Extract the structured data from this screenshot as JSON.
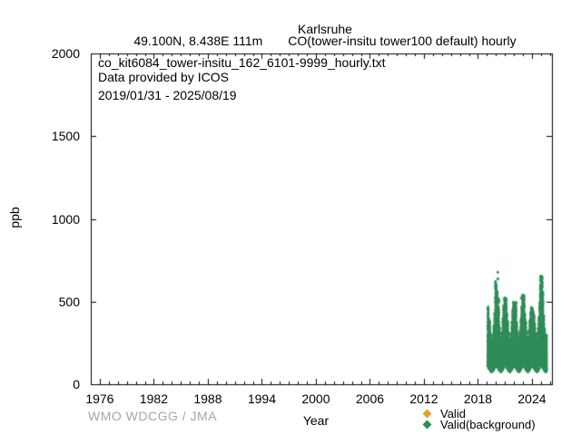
{
  "title": {
    "station": "Karlsruhe",
    "location_line": "49.100N, 8.438E 111m",
    "series_line": "CO(tower-insitu tower100 default) hourly"
  },
  "annotation": {
    "file_name": "co_kit6084_tower-insitu_162_6101-9999_hourly.txt",
    "provider": "Data provided by ICOS",
    "date_range": "2019/01/31 - 2025/08/19"
  },
  "footer_credit": "WMO WDCGG / JMA",
  "legend": {
    "valid": {
      "label": "Valid",
      "color": "#e8a02f"
    },
    "valid_background": {
      "label": "Valid(background)",
      "color": "#2e8b57"
    }
  },
  "chart_data": {
    "type": "scatter",
    "title": "Karlsruhe CO (tower-insitu tower100 default) hourly",
    "xlabel": "Year",
    "ylabel": "ppb",
    "xlim": [
      1975.0,
      2026.22
    ],
    "ylim": [
      0,
      2000
    ],
    "xticks": [
      1976,
      1982,
      1988,
      1994,
      2000,
      2006,
      2012,
      2018,
      2024
    ],
    "yticks": [
      0,
      500,
      1000,
      1500,
      2000
    ],
    "x_minor_step_years": 1,
    "grid": false,
    "legend_position": "bottom-right-outside",
    "marker": "diamond",
    "series": [
      {
        "name": "Valid",
        "color": "#e8a02f",
        "visible_point_count": 0
      },
      {
        "name": "Valid(background)",
        "color": "#2e8b57",
        "time_coverage": "2019/01/31 - 2025/08/19",
        "t_start_decimal_year": 2019.082,
        "t_end_decimal_year": 2025.633,
        "monthly_envelope_ppb": [
          [
            2019,
            2,
            108,
            470
          ],
          [
            2019,
            3,
            95,
            400
          ],
          [
            2019,
            4,
            90,
            385
          ],
          [
            2019,
            5,
            84,
            310
          ],
          [
            2019,
            6,
            76,
            258
          ],
          [
            2019,
            7,
            74,
            250
          ],
          [
            2019,
            8,
            78,
            264
          ],
          [
            2019,
            9,
            84,
            305
          ],
          [
            2019,
            10,
            94,
            358
          ],
          [
            2019,
            11,
            104,
            430
          ],
          [
            2019,
            12,
            114,
            628
          ],
          [
            2020,
            1,
            118,
            600
          ],
          [
            2020,
            2,
            112,
            560
          ],
          [
            2020,
            3,
            98,
            470
          ],
          [
            2020,
            4,
            94,
            520
          ],
          [
            2020,
            5,
            84,
            350
          ],
          [
            2020,
            6,
            78,
            278
          ],
          [
            2020,
            7,
            74,
            260
          ],
          [
            2020,
            8,
            78,
            270
          ],
          [
            2020,
            9,
            84,
            318
          ],
          [
            2020,
            10,
            94,
            398
          ],
          [
            2020,
            11,
            108,
            478
          ],
          [
            2020,
            12,
            114,
            524
          ],
          [
            2021,
            1,
            118,
            505
          ],
          [
            2021,
            2,
            112,
            520
          ],
          [
            2021,
            3,
            98,
            428
          ],
          [
            2021,
            4,
            94,
            380
          ],
          [
            2021,
            5,
            84,
            318
          ],
          [
            2021,
            6,
            78,
            268
          ],
          [
            2021,
            7,
            74,
            258
          ],
          [
            2021,
            8,
            78,
            270
          ],
          [
            2021,
            9,
            84,
            310
          ],
          [
            2021,
            10,
            94,
            378
          ],
          [
            2021,
            11,
            106,
            450
          ],
          [
            2021,
            12,
            114,
            498
          ],
          [
            2022,
            1,
            116,
            468
          ],
          [
            2022,
            2,
            110,
            452
          ],
          [
            2022,
            3,
            98,
            498
          ],
          [
            2022,
            4,
            94,
            378
          ],
          [
            2022,
            5,
            84,
            320
          ],
          [
            2022,
            6,
            78,
            270
          ],
          [
            2022,
            7,
            74,
            260
          ],
          [
            2022,
            8,
            78,
            280
          ],
          [
            2022,
            9,
            85,
            330
          ],
          [
            2022,
            10,
            95,
            398
          ],
          [
            2022,
            11,
            107,
            470
          ],
          [
            2022,
            12,
            115,
            542
          ],
          [
            2023,
            1,
            118,
            520
          ],
          [
            2023,
            2,
            113,
            538
          ],
          [
            2023,
            3,
            99,
            430
          ],
          [
            2023,
            4,
            94,
            380
          ],
          [
            2023,
            5,
            84,
            320
          ],
          [
            2023,
            6,
            78,
            280
          ],
          [
            2023,
            7,
            75,
            260
          ],
          [
            2023,
            8,
            78,
            280
          ],
          [
            2023,
            9,
            85,
            330
          ],
          [
            2023,
            10,
            94,
            390
          ],
          [
            2023,
            11,
            105,
            440
          ],
          [
            2023,
            12,
            113,
            470
          ],
          [
            2024,
            1,
            117,
            460
          ],
          [
            2024,
            2,
            111,
            440
          ],
          [
            2024,
            3,
            99,
            420
          ],
          [
            2024,
            4,
            93,
            370
          ],
          [
            2024,
            5,
            83,
            310
          ],
          [
            2024,
            6,
            77,
            270
          ],
          [
            2024,
            7,
            75,
            260
          ],
          [
            2024,
            8,
            77,
            280
          ],
          [
            2024,
            9,
            85,
            340
          ],
          [
            2024,
            10,
            95,
            410
          ],
          [
            2024,
            11,
            109,
            500
          ],
          [
            2024,
            12,
            117,
            660
          ],
          [
            2025,
            1,
            119,
            640
          ],
          [
            2025,
            2,
            113,
            655
          ],
          [
            2025,
            3,
            99,
            560
          ],
          [
            2025,
            4,
            93,
            420
          ],
          [
            2025,
            5,
            83,
            340
          ],
          [
            2025,
            6,
            77,
            290
          ],
          [
            2025,
            7,
            75,
            280
          ],
          [
            2025,
            8,
            77,
            300
          ]
        ],
        "outliers_t_v": [
          [
            2020.21,
            677
          ],
          [
            2020.21,
            637
          ],
          [
            2022.82,
            522
          ]
        ]
      }
    ]
  }
}
